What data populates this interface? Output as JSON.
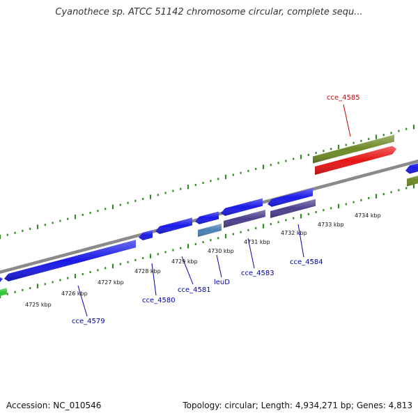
{
  "title": "Cyanothece sp. ATCC 51142 chromosome circular, complete sequ...",
  "footer": {
    "accession": "Accession: NC_010546",
    "topology": "Topology: circular; Length: 4,934,271 bp; Genes: 4,813"
  },
  "colors": {
    "backbone": "#8a8a8a",
    "tick": "#2e8b1e",
    "blue_gene": "#1a1ae6",
    "purple_gene": "#4a3f8c",
    "steel_gene": "#4a7fb3",
    "olive_gene": "#6b8a24",
    "red_gene": "#e61414",
    "green_gene": "#2bc832",
    "label_blue": "#0000aa",
    "label_red": "#c80000"
  },
  "kbp_ticks": [
    "4725 kbp",
    "4726 kbp",
    "4727 kbp",
    "4728 kbp",
    "4729 kbp",
    "4730 kbp",
    "4731 kbp",
    "4732 kbp",
    "4733 kbp",
    "4734 kbp"
  ],
  "gene_labels": [
    "cce_4579",
    "cce_4580",
    "cce_4581",
    "leuD",
    "cce_4583",
    "cce_4584",
    "cce_4585"
  ]
}
